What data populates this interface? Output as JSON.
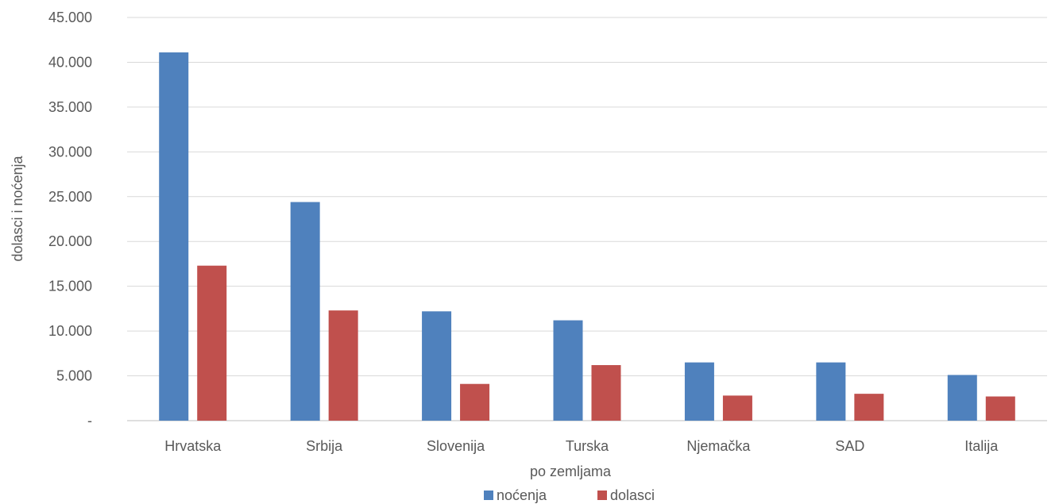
{
  "chart_data": {
    "type": "bar",
    "title": "",
    "xlabel": "po zemljama",
    "ylabel": "dolasci i noćenja",
    "categories": [
      "Hrvatska",
      "Srbija",
      "Slovenija",
      "Turska",
      "Njemačka",
      "SAD",
      "Italija"
    ],
    "series": [
      {
        "name": "noćenja",
        "color": "#4F81BD",
        "values": [
          41100,
          24400,
          12200,
          11200,
          6500,
          6500,
          5100
        ]
      },
      {
        "name": "dolasci",
        "color": "#C0504D",
        "values": [
          17300,
          12300,
          4100,
          6200,
          2800,
          3000,
          2700
        ]
      }
    ],
    "ylim": [
      0,
      45000
    ],
    "yticks": [
      0,
      5000,
      10000,
      15000,
      20000,
      25000,
      30000,
      35000,
      40000,
      45000
    ],
    "ytick_labels": [
      "-",
      "5.000",
      "10.000",
      "15.000",
      "20.000",
      "25.000",
      "30.000",
      "35.000",
      "40.000",
      "45.000"
    ],
    "grid": true,
    "legend_position": "bottom"
  }
}
